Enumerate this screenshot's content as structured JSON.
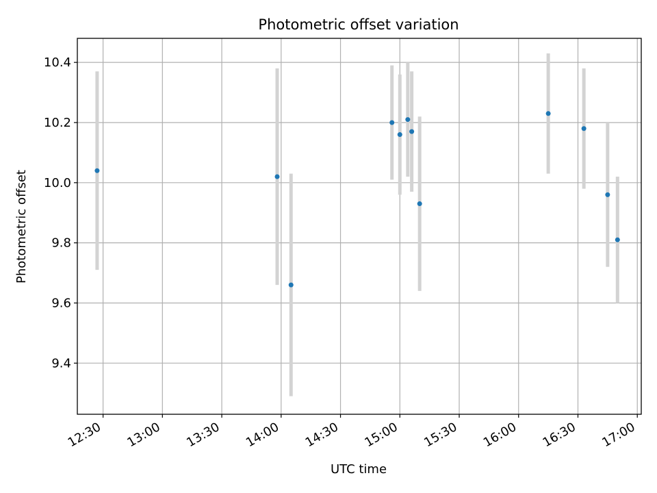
{
  "chart_data": {
    "type": "scatter",
    "title": "Photometric offset variation",
    "xlabel": "UTC time",
    "ylabel": "Photometric offset",
    "x_ticks": [
      "12:30",
      "13:00",
      "13:30",
      "14:00",
      "14:30",
      "15:00",
      "15:30",
      "16:00",
      "16:30",
      "17:00"
    ],
    "y_ticks": [
      "9.4",
      "9.6",
      "9.8",
      "10.0",
      "10.2",
      "10.4"
    ],
    "xlim": [
      "12:17",
      "17:02"
    ],
    "ylim": [
      9.23,
      10.48
    ],
    "grid": true,
    "colors": {
      "marker": "#1f77b4",
      "errorbar": "#d3d3d3",
      "grid": "#b0b0b0"
    },
    "points": [
      {
        "time": "12:27",
        "value": 10.04,
        "error": 0.33
      },
      {
        "time": "13:58",
        "value": 10.02,
        "error": 0.36
      },
      {
        "time": "14:05",
        "value": 9.66,
        "error": 0.37
      },
      {
        "time": "14:56",
        "value": 10.2,
        "error": 0.19
      },
      {
        "time": "15:00",
        "value": 10.16,
        "error": 0.2
      },
      {
        "time": "15:04",
        "value": 10.21,
        "error": 0.19
      },
      {
        "time": "15:06",
        "value": 10.17,
        "error": 0.2
      },
      {
        "time": "15:10",
        "value": 9.93,
        "error": 0.29
      },
      {
        "time": "16:15",
        "value": 10.23,
        "error": 0.2
      },
      {
        "time": "16:33",
        "value": 10.18,
        "error": 0.2
      },
      {
        "time": "16:45",
        "value": 9.96,
        "error": 0.24
      },
      {
        "time": "16:50",
        "value": 9.81,
        "error": 0.21
      }
    ]
  }
}
